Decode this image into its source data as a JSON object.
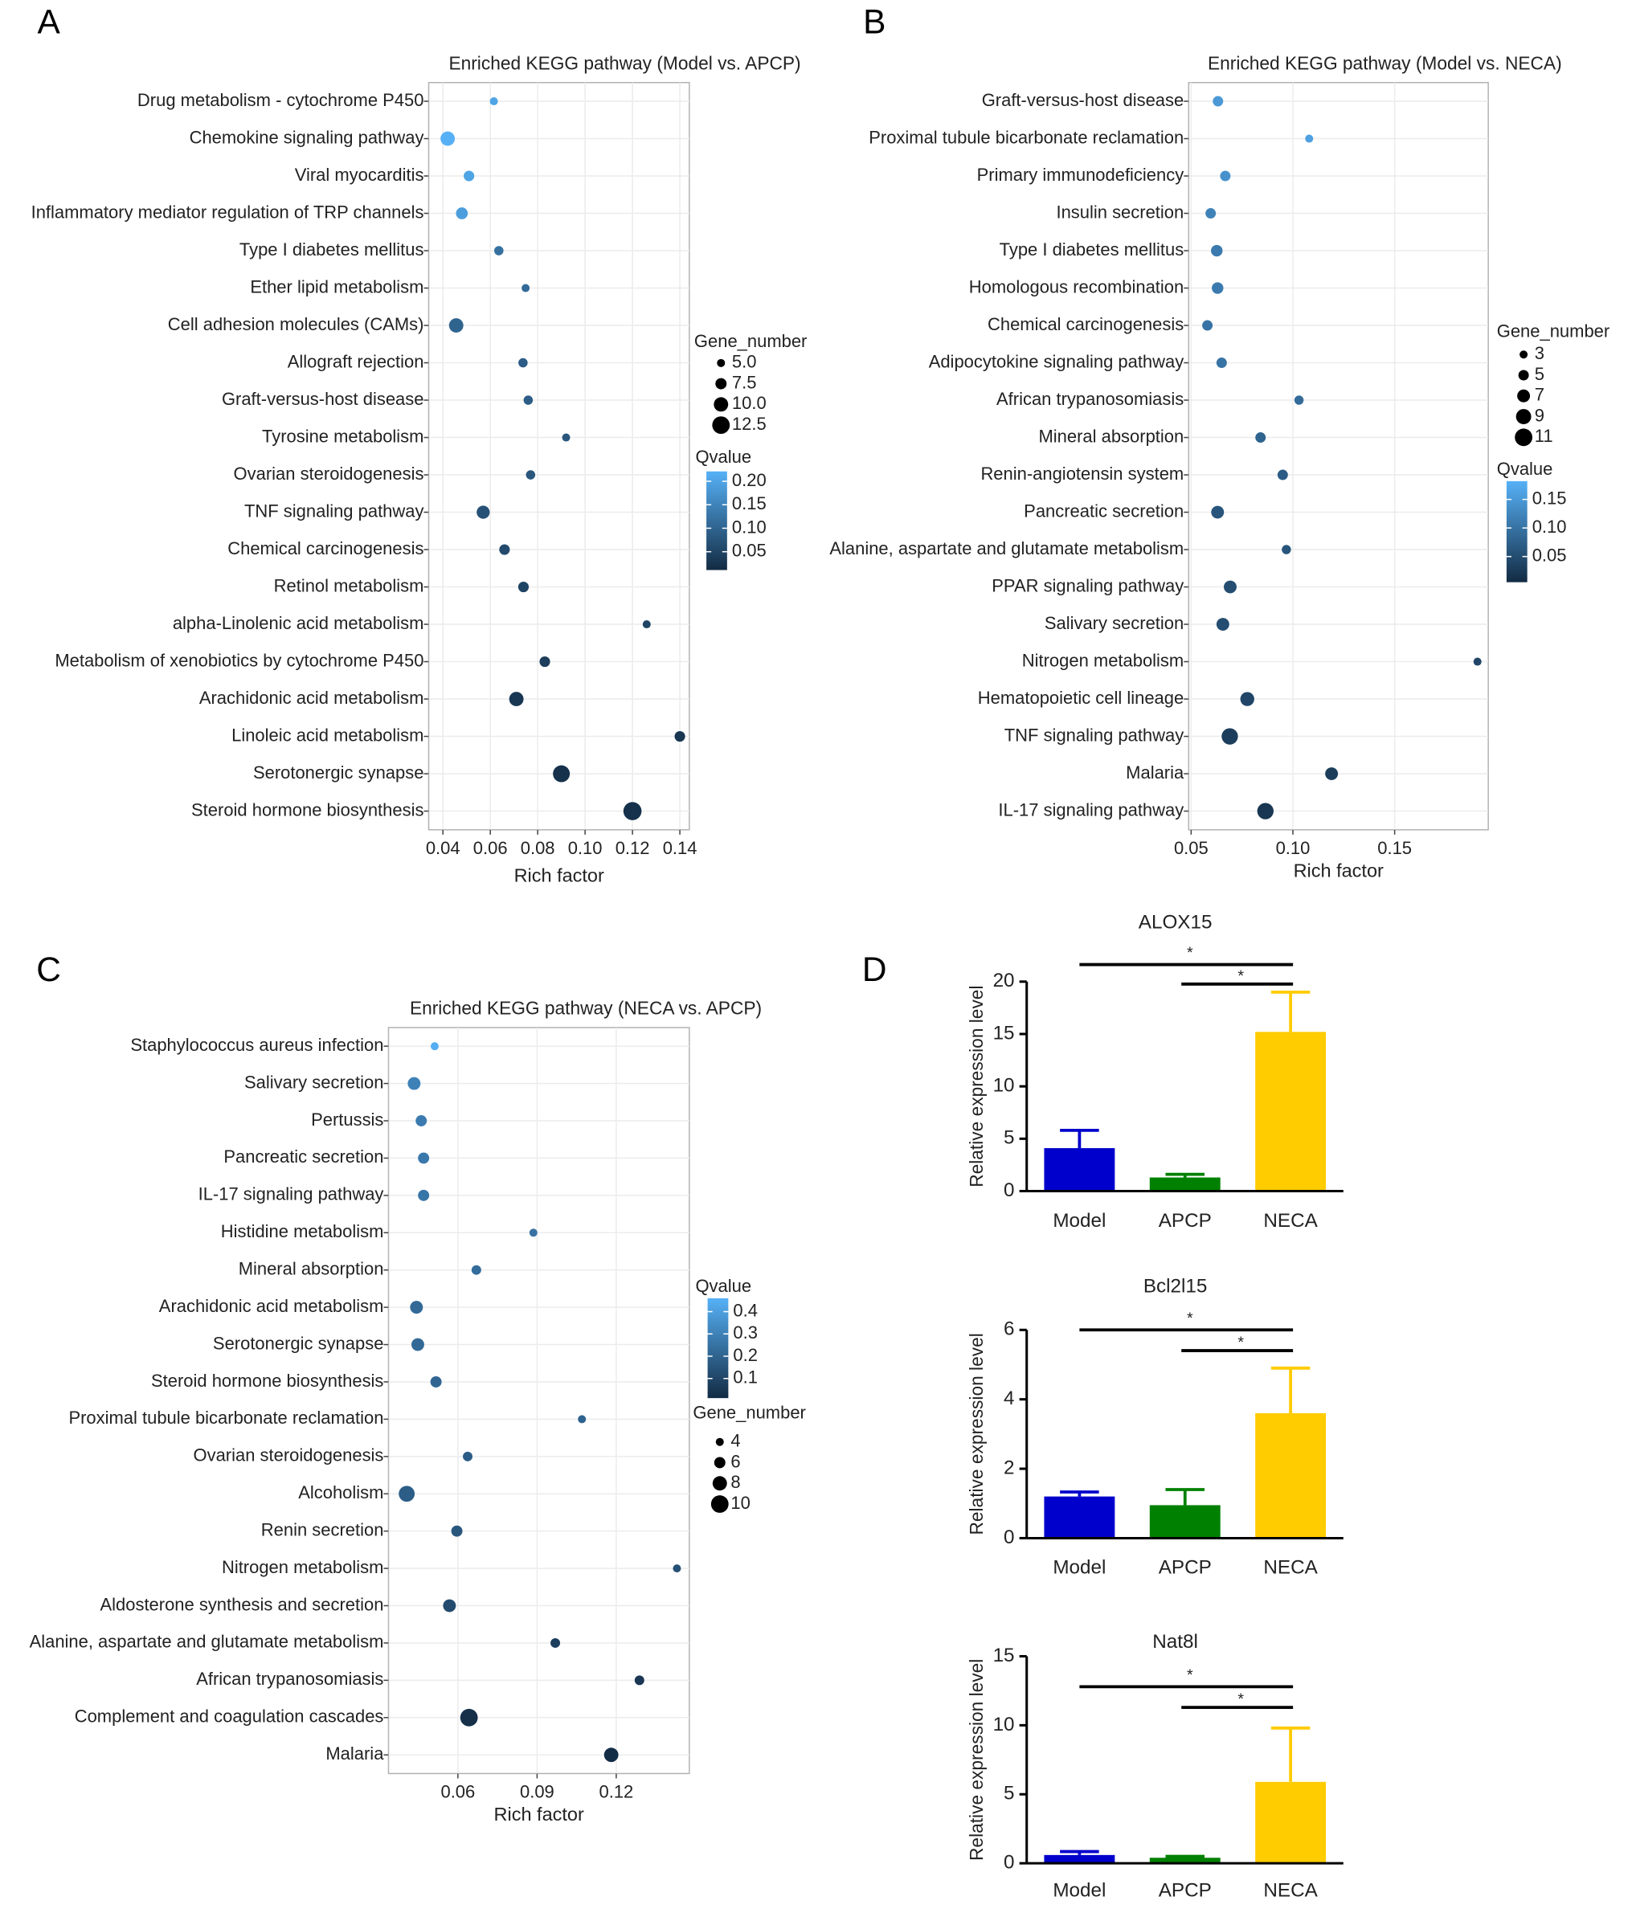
{
  "chart_data": [
    {
      "type": "dot",
      "panel_label": "A",
      "title": "Enriched KEGG pathway (Model vs. APCP)",
      "xlabel": "Rich factor",
      "categories": [
        "Drug metabolism - cytochrome P450",
        "Chemokine signaling pathway",
        "Viral myocarditis",
        "Inflammatory mediator regulation of TRP channels",
        "Type I diabetes mellitus",
        "Ether lipid metabolism",
        "Cell adhesion molecules (CAMs)",
        "Allograft rejection",
        "Graft-versus-host disease",
        "Tyrosine metabolism",
        "Ovarian steroidogenesis",
        "TNF signaling pathway",
        "Chemical carcinogenesis",
        "Retinol metabolism",
        "alpha-Linolenic acid metabolism",
        "Metabolism of xenobiotics by cytochrome P450",
        "Arachidonic acid metabolism",
        "Linoleic acid metabolism",
        "Serotonergic synapse",
        "Steroid hormone biosynthesis"
      ],
      "rich_factor": [
        0.0615,
        0.042,
        0.051,
        0.048,
        0.0636,
        0.0749,
        0.0456,
        0.0738,
        0.076,
        0.092,
        0.077,
        0.057,
        0.066,
        0.074,
        0.126,
        0.083,
        0.071,
        0.14,
        0.09,
        0.12
      ],
      "gene_number": [
        5,
        10,
        7,
        8,
        6,
        5,
        10,
        6,
        6,
        5,
        6,
        9,
        7,
        7,
        5,
        7,
        10,
        7,
        12,
        13
      ],
      "qvalue": [
        0.2,
        0.22,
        0.2,
        0.19,
        0.12,
        0.11,
        0.1,
        0.09,
        0.09,
        0.08,
        0.08,
        0.07,
        0.06,
        0.05,
        0.05,
        0.04,
        0.03,
        0.03,
        0.02,
        0.02
      ],
      "xlim": [
        0.034,
        0.144
      ],
      "xticks": [
        0.04,
        0.06,
        0.08,
        {
          "value": 0.1,
          "label": "0.10"
        },
        0.12,
        0.14
      ],
      "size_legend": {
        "title": "Gene_number",
        "ticks": [
          {
            "value": 5,
            "label": "5.0"
          },
          7.5,
          {
            "value": 10,
            "label": "10.0"
          },
          12.5
        ]
      },
      "color_scale": {
        "title": "Qvalue",
        "lim": [
          0.011,
          0.221
        ],
        "colors": [
          "#132b43",
          "#56b1f7"
        ],
        "ticks": [
          0.05,
          {
            "value": 0.1,
            "label": "0.10"
          },
          0.15,
          {
            "value": 0.2,
            "label": "0.20"
          }
        ]
      }
    },
    {
      "type": "dot",
      "panel_label": "B",
      "title": "Enriched KEGG pathway (Model vs. NECA)",
      "xlabel": "Rich factor",
      "categories": [
        "Graft-versus-host disease",
        "Proximal tubule bicarbonate reclamation",
        "Primary immunodeficiency",
        "Insulin secretion",
        "Type I diabetes mellitus",
        "Homologous recombination",
        "Chemical carcinogenesis",
        "Adipocytokine signaling pathway",
        "African trypanosomiasis",
        "Mineral absorption",
        "Renin-angiotensin system",
        "Pancreatic secretion",
        "Alanine, aspartate and glutamate metabolism",
        "PPAR signaling pathway",
        "Salivary secretion",
        "Nitrogen metabolism",
        "Hematopoietic cell lineage",
        "TNF signaling pathway",
        "Malaria",
        "IL-17 signaling pathway"
      ],
      "rich_factor": [
        0.0632,
        0.108,
        0.0668,
        0.0596,
        0.0626,
        0.063,
        0.058,
        0.065,
        0.103,
        0.0841,
        0.095,
        0.063,
        0.0968,
        0.0692,
        0.0656,
        0.1907,
        0.0776,
        0.069,
        0.119,
        0.0865
      ],
      "gene_number": [
        5,
        3,
        5,
        5,
        6,
        6,
        5,
        5,
        4,
        5,
        5,
        7,
        4,
        7,
        7,
        3,
        8,
        10,
        7,
        10
      ],
      "qvalue": [
        0.15,
        0.16,
        0.14,
        0.12,
        0.11,
        0.11,
        0.1,
        0.1,
        0.09,
        0.08,
        0.07,
        0.06,
        0.06,
        0.05,
        0.05,
        0.04,
        0.04,
        0.03,
        0.03,
        0.02
      ],
      "xlim": [
        0.0488,
        0.196
      ],
      "xticks": [
        0.05,
        {
          "value": 0.1,
          "label": "0.10"
        },
        0.15
      ],
      "size_legend": {
        "title": "Gene_number",
        "ticks": [
          3,
          5,
          7,
          9,
          11
        ]
      },
      "color_scale": {
        "title": "Qvalue",
        "lim": [
          0.005,
          0.182
        ],
        "colors": [
          "#132b43",
          "#56b1f7"
        ],
        "ticks": [
          0.05,
          {
            "value": 0.1,
            "label": "0.10"
          },
          0.15
        ]
      }
    },
    {
      "type": "dot",
      "panel_label": "C",
      "title": "Enriched KEGG pathway (NECA vs. APCP)",
      "xlabel": "Rich factor",
      "categories": [
        "Staphylococcus aureus infection",
        "Salivary secretion",
        "Pertussis",
        "Pancreatic secretion",
        "IL-17 signaling pathway",
        "Histidine metabolism",
        "Mineral absorption",
        "Arachidonic acid metabolism",
        "Serotonergic synapse",
        "Steroid hormone biosynthesis",
        "Proximal tubule bicarbonate reclamation",
        "Ovarian steroidogenesis",
        "Alcoholism",
        "Renin secretion",
        "Nitrogen metabolism",
        "Aldosterone synthesis and secretion",
        "Alanine, aspartate and glutamate metabolism",
        "African trypanosomiasis",
        "Complement and coagulation cascades",
        "Malaria"
      ],
      "rich_factor": [
        0.0512,
        0.0434,
        0.0461,
        0.047,
        0.047,
        0.0886,
        0.067,
        0.0443,
        0.0448,
        0.0517,
        0.107,
        0.0637,
        0.0406,
        0.0596,
        0.143,
        0.0568,
        0.0969,
        0.1288,
        0.0642,
        0.1181
      ],
      "gene_number": [
        4,
        7,
        6,
        6,
        6,
        4,
        5,
        7,
        7,
        6,
        4,
        5,
        9,
        6,
        4,
        7,
        5,
        5,
        10,
        8
      ],
      "qvalue": [
        0.45,
        0.3,
        0.28,
        0.27,
        0.26,
        0.25,
        0.23,
        0.22,
        0.22,
        0.21,
        0.2,
        0.18,
        0.18,
        0.16,
        0.14,
        0.12,
        0.08,
        0.05,
        0.03,
        0.02
      ],
      "xlim": [
        0.0337,
        0.1477
      ],
      "xticks": [
        0.06,
        0.09,
        0.12
      ],
      "size_legend": {
        "title": "Gene_number",
        "ticks": [
          4,
          6,
          8,
          10
        ]
      },
      "color_scale": {
        "title": "Qvalue",
        "lim": [
          0.012,
          0.46
        ],
        "colors": [
          "#132b43",
          "#56b1f7"
        ],
        "ticks": [
          0.1,
          0.2,
          0.3,
          0.4
        ]
      }
    },
    {
      "type": "bar",
      "panel_label": "D",
      "title": "ALOX15",
      "ylabel": "Relative expression level",
      "categories": [
        "Model",
        "APCP",
        "NECA"
      ],
      "values": [
        4.1,
        1.3,
        15.2
      ],
      "errors": [
        1.7,
        0.3,
        3.8
      ],
      "colors": [
        "#0000cc",
        "#008000",
        "#ffcc00"
      ],
      "ylim": [
        0,
        20
      ],
      "yticks": [
        0,
        5,
        10,
        15,
        20
      ],
      "annotations": [
        "*",
        "*"
      ]
    },
    {
      "type": "bar",
      "title": "Bcl2l15",
      "ylabel": "Relative expression level",
      "categories": [
        "Model",
        "APCP",
        "NECA"
      ],
      "values": [
        1.2,
        0.95,
        3.6
      ],
      "errors": [
        0.13,
        0.45,
        1.3
      ],
      "colors": [
        "#0000cc",
        "#008000",
        "#ffcc00"
      ],
      "ylim": [
        0,
        6
      ],
      "yticks": [
        0,
        2,
        4,
        6
      ],
      "annotations": [
        "*",
        "*"
      ]
    },
    {
      "type": "bar",
      "title": "Nat8l",
      "ylabel": "Relative expression level",
      "categories": [
        "Model",
        "APCP",
        "NECA"
      ],
      "values": [
        0.6,
        0.4,
        5.9
      ],
      "errors": [
        0.25,
        0.1,
        3.9
      ],
      "colors": [
        "#0000cc",
        "#008000",
        "#ffcc00"
      ],
      "ylim": [
        0,
        15
      ],
      "yticks": [
        0,
        5,
        10,
        15
      ],
      "annotations": [
        "*",
        "*"
      ]
    }
  ]
}
